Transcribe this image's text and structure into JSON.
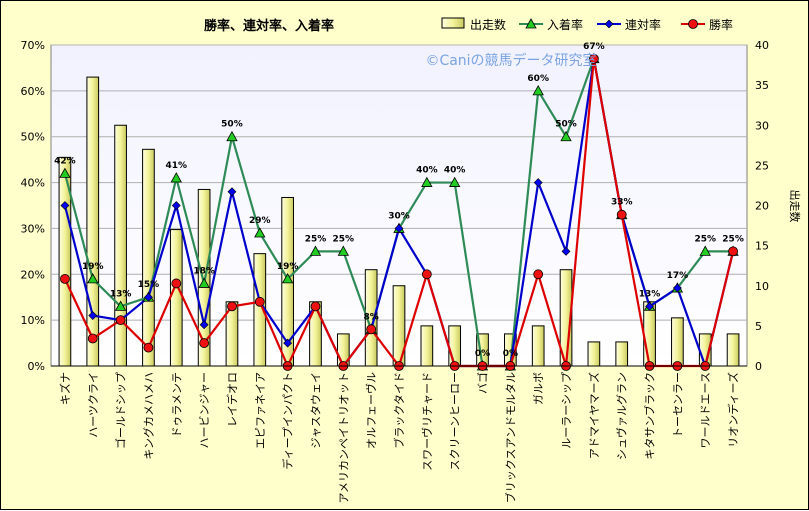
{
  "chart_data": {
    "type": "bar",
    "title": "勝率、連対率、入着率",
    "watermark": "©Caniの競馬データ研究室",
    "ylabel_right": "出走数",
    "ylim_left": [
      0,
      70
    ],
    "ylim_right": [
      0,
      40
    ],
    "left_ticks": [
      "0%",
      "10%",
      "20%",
      "30%",
      "40%",
      "50%",
      "60%",
      "70%"
    ],
    "right_ticks": [
      "0",
      "5",
      "10",
      "15",
      "20",
      "25",
      "30",
      "35",
      "40"
    ],
    "grid": true,
    "legend_position": "top-right",
    "categories": [
      "キズナ",
      "ハーツクライ",
      "ゴールドシップ",
      "キングカメハメハ",
      "ドゥラメンテ",
      "ハービンジャー",
      "レイデオロ",
      "エピファネイア",
      "ディープインパクト",
      "ジャスタウェイ",
      "アメリカンペイトリオット",
      "オルフェーヴル",
      "ブラックタイド",
      "スワーヴリチャード",
      "スクリーンヒーロー",
      "バゴ",
      "ブリックスアンドモルタル",
      "ガルボ",
      "ルーラーシップ",
      "アドマイヤマーズ",
      "シュヴァルグラン",
      "キタサンブラック",
      "トーセンラー",
      "ワールドエース",
      "リオンディーズ"
    ],
    "series": [
      {
        "name": "出走数",
        "kind": "bar",
        "axis": "right",
        "color": "#f0f0a0",
        "values": [
          26,
          36,
          30,
          27,
          17,
          22,
          8,
          14,
          21,
          8,
          4,
          12,
          10,
          5,
          5,
          4,
          4,
          5,
          12,
          3,
          3,
          8,
          6,
          4,
          4
        ]
      },
      {
        "name": "入着率",
        "kind": "line",
        "axis": "left",
        "color": "#2e8b57",
        "values": [
          42,
          19,
          13,
          15,
          41,
          18,
          50,
          29,
          19,
          25,
          25,
          8,
          30,
          40,
          40,
          0,
          0,
          60,
          50,
          67,
          33,
          13,
          17,
          25,
          25
        ],
        "labels": [
          "42%",
          "19%",
          "13%",
          "15%",
          "41%",
          "18%",
          "50%",
          "29%",
          "19%",
          "25%",
          "25%",
          "8%",
          "30%",
          "40%",
          "40%",
          "0%",
          "0%",
          "60%",
          "50%",
          "67%",
          "33%",
          "13%",
          "17%",
          "25%",
          "25%"
        ]
      },
      {
        "name": "連対率",
        "kind": "line",
        "axis": "left",
        "color": "#0000cc",
        "values": [
          35,
          11,
          10,
          15,
          35,
          9,
          38,
          14,
          5,
          13,
          0,
          8,
          30,
          20,
          0,
          0,
          0,
          40,
          25,
          67,
          33,
          13,
          17,
          0,
          25
        ]
      },
      {
        "name": "勝率",
        "kind": "line",
        "axis": "left",
        "color": "#dd0000",
        "values": [
          19,
          6,
          10,
          4,
          18,
          5,
          13,
          14,
          0,
          13,
          0,
          8,
          0,
          20,
          0,
          0,
          0,
          20,
          0,
          67,
          33,
          0,
          0,
          0,
          25
        ]
      }
    ]
  }
}
